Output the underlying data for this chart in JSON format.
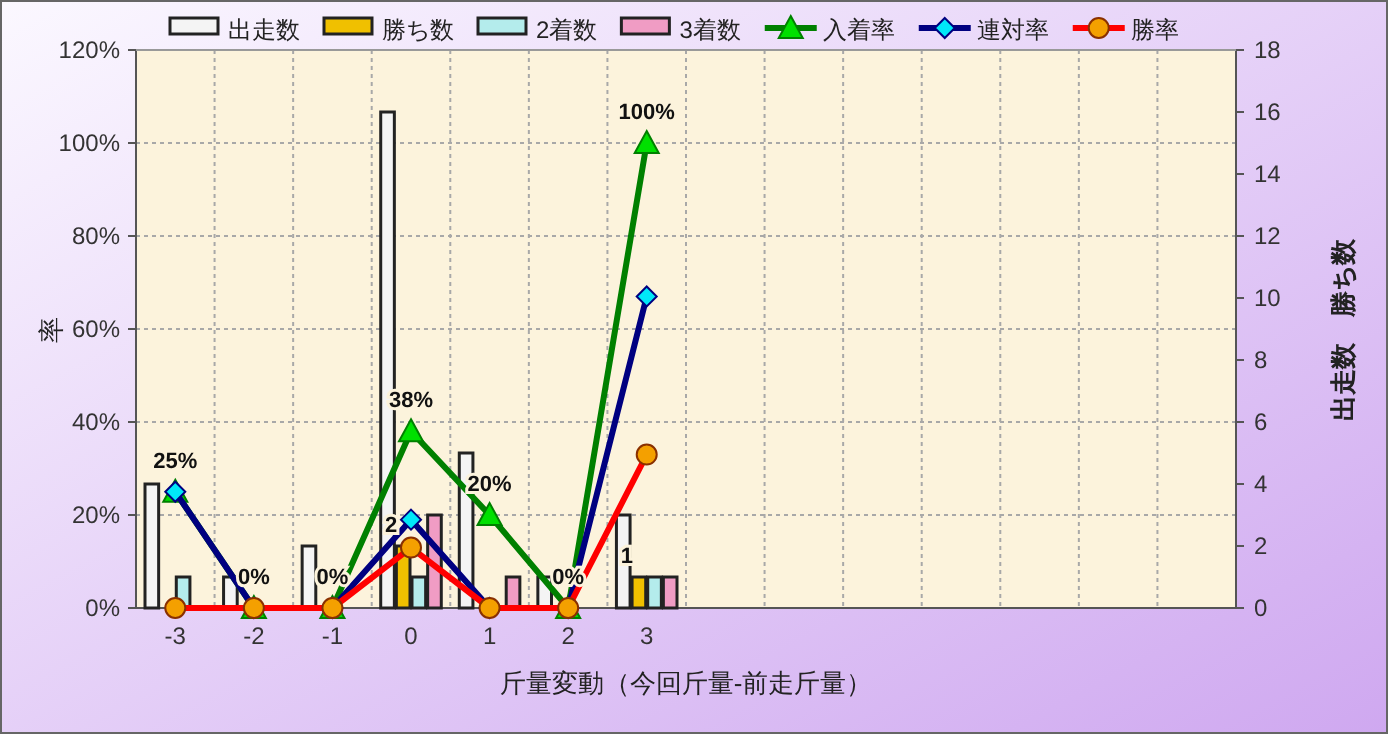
{
  "chart_data": {
    "type": "bar",
    "xlabel": "斤量変動（今回斤量-前走斤量）",
    "ylabel": "率",
    "y2label": "出走数　勝ち数",
    "categories": [
      "-3",
      "-2",
      "-1",
      "0",
      "1",
      "2",
      "3",
      null,
      null,
      null,
      null,
      null,
      null,
      null
    ],
    "series": [
      {
        "name": "出走数",
        "axis": "y2",
        "color": "#f4f4f4",
        "values": [
          4,
          1,
          2,
          16,
          5,
          1,
          3,
          null,
          null,
          null,
          null,
          null,
          null,
          null
        ]
      },
      {
        "name": "勝ち数",
        "axis": "y2",
        "color": "#f0c000",
        "values": [
          0,
          0,
          0,
          2,
          0,
          0,
          1,
          null,
          null,
          null,
          null,
          null,
          null,
          null
        ],
        "value_labels": [
          null,
          null,
          null,
          "2",
          null,
          null,
          "1",
          null,
          null,
          null,
          null,
          null,
          null,
          null
        ]
      },
      {
        "name": "2着数",
        "axis": "y2",
        "color": "#b4ecec",
        "values": [
          1,
          0,
          0,
          1,
          0,
          0,
          1,
          null,
          null,
          null,
          null,
          null,
          null,
          null
        ]
      },
      {
        "name": "3着数",
        "axis": "y2",
        "color": "#f09cc4",
        "values": [
          0,
          0,
          0,
          3,
          1,
          0,
          1,
          null,
          null,
          null,
          null,
          null,
          null,
          null
        ]
      },
      {
        "name": "入着率",
        "type": "line",
        "marker": "triangle",
        "color": "#008000",
        "values": [
          25,
          0,
          0,
          38,
          20,
          0,
          100,
          null,
          null,
          null,
          null,
          null,
          null,
          null
        ],
        "value_labels": [
          "25%",
          "0%",
          "0%",
          "38%",
          "20%",
          "0%",
          "100%",
          null,
          null,
          null,
          null,
          null,
          null,
          null
        ]
      },
      {
        "name": "連対率",
        "type": "line",
        "marker": "diamond",
        "color": "#000080",
        "values": [
          25,
          0,
          0,
          19,
          0,
          0,
          67,
          null,
          null,
          null,
          null,
          null,
          null,
          null
        ]
      },
      {
        "name": "勝率",
        "type": "line",
        "marker": "circle",
        "color": "#ff0000",
        "values": [
          0,
          0,
          0,
          13,
          0,
          0,
          33,
          null,
          null,
          null,
          null,
          null,
          null,
          null
        ]
      }
    ],
    "ylim": [
      0,
      120
    ],
    "yticks": [
      {
        "value": 0,
        "label": "0%"
      },
      {
        "value": 20,
        "label": "20%"
      },
      {
        "value": 40,
        "label": "40%"
      },
      {
        "value": 60,
        "label": "60%"
      },
      {
        "value": 80,
        "label": "80%"
      },
      {
        "value": 100,
        "label": "100%"
      },
      {
        "value": 120,
        "label": "120%"
      }
    ],
    "y2lim": [
      0,
      18
    ],
    "y2ticks": [
      0,
      2,
      4,
      6,
      8,
      10,
      12,
      14,
      16,
      18
    ],
    "grid": true,
    "legend": "top",
    "line_style": "solid"
  }
}
